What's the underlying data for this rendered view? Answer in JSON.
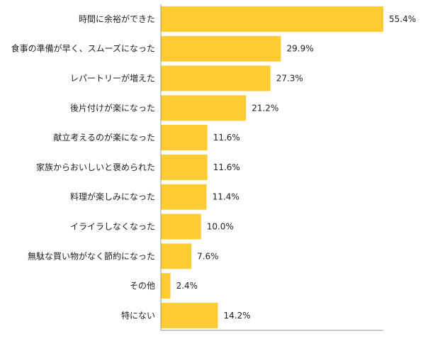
{
  "chart_data": {
    "type": "bar",
    "orientation": "horizontal",
    "categories": [
      "時間に余裕ができた",
      "食事の準備が早く、スムーズになった",
      "レパートリーが増えた",
      "後片付けが楽になった",
      "献立考えるのが楽になった",
      "家族からおいしいと褒められた",
      "料理が楽しみになった",
      "イライラしなくなった",
      "無駄な買い物がなく節約になった",
      "その他",
      "特にない"
    ],
    "values": [
      55.4,
      29.9,
      27.3,
      21.2,
      11.6,
      11.6,
      11.4,
      10.0,
      7.6,
      2.4,
      14.2
    ],
    "value_labels": [
      "55.4%",
      "29.9%",
      "27.3%",
      "21.2%",
      "11.6%",
      "11.6%",
      "11.4%",
      "10.0%",
      "7.6%",
      "2.4%",
      "14.2%"
    ],
    "xlim": [
      0,
      55.4
    ],
    "grid": false,
    "colors": {
      "bar": "#FFCC33",
      "axis": "#999999",
      "text": "#222222"
    }
  }
}
